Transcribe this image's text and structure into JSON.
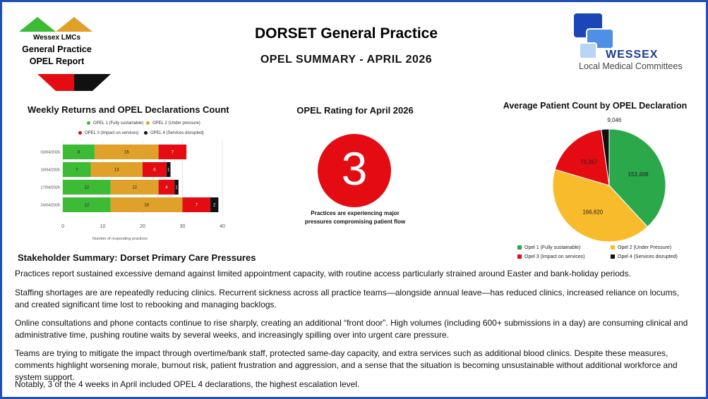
{
  "header": {
    "logo_org": "Wessex LMCs",
    "logo_line1": "General Practice",
    "logo_line2": "OPEL Report",
    "title": "DORSET General Practice",
    "subtitle": "OPEL SUMMARY - APRIL 2026",
    "brand_name": "WESSEX",
    "brand_tagline": "Local Medical Committees"
  },
  "colors": {
    "opel1": "#3dbb34",
    "opel2": "#dfa12a",
    "opel3": "#e40b12",
    "opel4": "#111111",
    "pie_opel1": "#2aa84a",
    "pie_opel2": "#f8bb2c",
    "pie_opel3": "#e40b12",
    "pie_opel4": "#111111",
    "border": "#1f4fb4"
  },
  "weekly_chart": {
    "title": "Weekly Returns and OPEL Declarations Count",
    "legend": [
      "OPEL 1 (Fully sustainable)",
      "OPEL 2 (Under pressure)",
      "OPEL 3 (Impact on services)",
      "OPEL 4 (Services disrupted)"
    ],
    "xlabel": "Number of responding practices",
    "x_ticks": [
      "0",
      "10",
      "20",
      "30",
      "40"
    ]
  },
  "rating": {
    "title": "OPEL Rating for April 2026",
    "value": "3",
    "caption_line1": "Practices are experiencing major",
    "caption_line2": "pressures compromising patient flow"
  },
  "pie_chart": {
    "title": "Average Patient Count by OPEL Declaration",
    "legend": [
      "Opel 1 (Fully sustainable)",
      "Opel 2 (Under Pressure)",
      "Opel 3 (Impact on services)",
      "Opel 4 (Services disrupted)"
    ]
  },
  "chart_data": [
    {
      "type": "bar",
      "stacked": true,
      "orientation": "horizontal",
      "title": "Weekly Returns and OPEL Declarations Count",
      "xlabel": "Number of responding practices",
      "xlim": [
        0,
        40
      ],
      "categories": [
        "03/04/2026",
        "10/04/2026",
        "17/04/2026",
        "24/04/2026"
      ],
      "series": [
        {
          "name": "OPEL 1 (Fully sustainable)",
          "values": [
            8,
            7,
            12,
            12
          ]
        },
        {
          "name": "OPEL 2 (Under pressure)",
          "values": [
            16,
            13,
            12,
            18
          ]
        },
        {
          "name": "OPEL 3 (Impact on services)",
          "values": [
            7,
            6,
            4,
            7
          ]
        },
        {
          "name": "OPEL 4 (Services disrupted)",
          "values": [
            0,
            1,
            1,
            2
          ]
        }
      ],
      "legend": "top"
    },
    {
      "type": "pie",
      "title": "Average Patient Count by OPEL Declaration",
      "labels": [
        "Opel 1 (Fully sustainable)",
        "Opel 2 (Under Pressure)",
        "Opel 3 (Impact on services)",
        "Opel 4 (Services disrupted)"
      ],
      "values": [
        153498,
        166820,
        73267,
        9046
      ],
      "value_labels": [
        "153,498",
        "166,820",
        "73,267",
        "9,046"
      ],
      "legend": "bottom"
    }
  ],
  "summary": {
    "title": "Stakeholder Summary: Dorset Primary Care Pressures",
    "paragraphs": [
      "Practices report sustained excessive demand against limited appointment capacity, with routine access particularly strained around Easter and bank-holiday periods.",
      "Staffing shortages are  are repeatedly reducing clinics. Recurrent sickness across all practice teams—alongside annual leave—has reduced clinics, increased reliance on locums, and created significant time lost to rebooking and managing backlogs.",
      "Online consultations and phone contacts continue to rise sharply, creating an additional “front door”. High volumes (including 600+ submissions in a day) are consuming clinical and administrative time, pushing routine waits by several weeks, and increasingly spilling over into urgent care pressure.",
      "Teams are trying to mitigate the impact through overtime/bank staff, protected same-day capacity, and extra services such as additional blood clinics. Despite these measures, comments highlight worsening morale, burnout risk, patient frustration and aggression, and a sense that the situation is becoming unsustainable without additional workforce and system support.",
      "Notably, 3 of the 4 weeks  in April included OPEL 4 declarations, the highest escalation level."
    ]
  }
}
